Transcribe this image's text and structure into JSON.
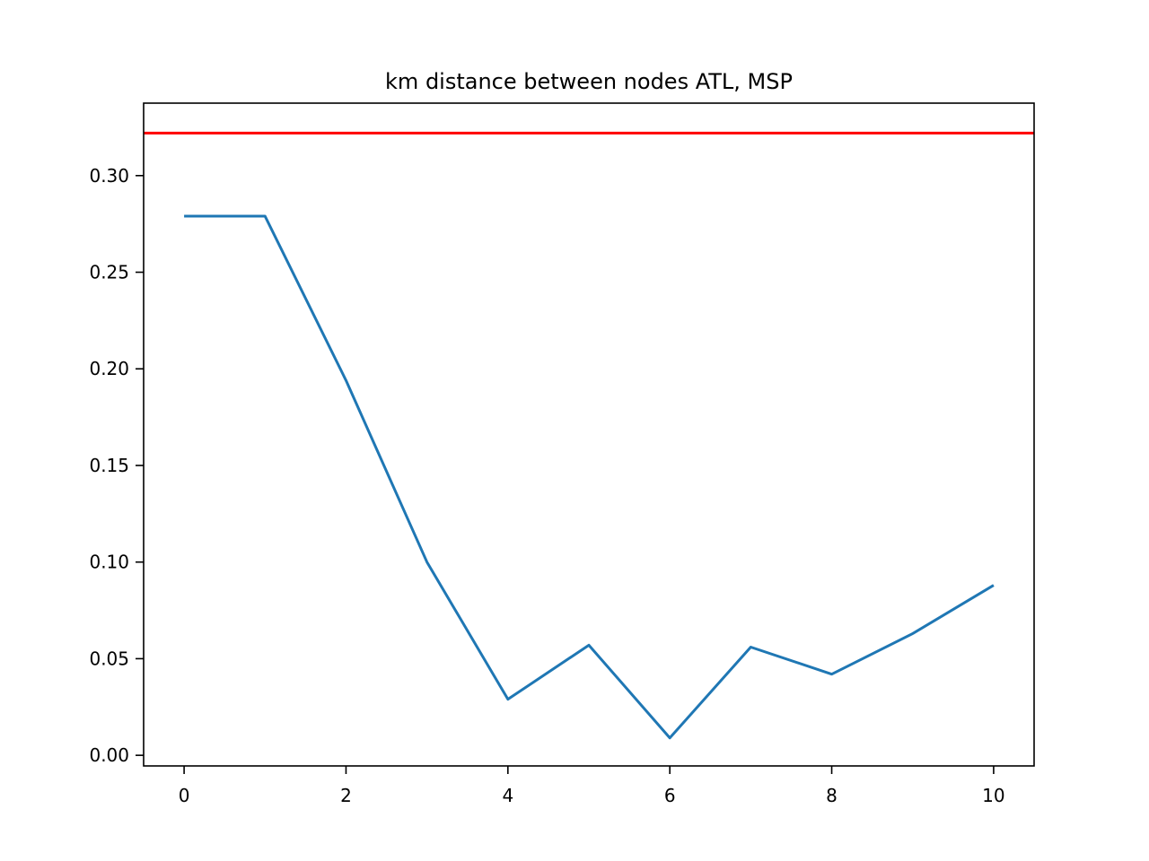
{
  "chart_data": {
    "type": "line",
    "title": "km distance between nodes ATL, MSP",
    "xlabel": "",
    "ylabel": "",
    "xlim": [
      -0.5,
      10.5
    ],
    "ylim": [
      -0.0055,
      0.3375
    ],
    "xticks": [
      0,
      2,
      4,
      6,
      8,
      10
    ],
    "xtick_labels": [
      "0",
      "2",
      "4",
      "6",
      "8",
      "10"
    ],
    "yticks": [
      0.0,
      0.05,
      0.1,
      0.15,
      0.2,
      0.25,
      0.3
    ],
    "ytick_labels": [
      "0.00",
      "0.05",
      "0.10",
      "0.15",
      "0.20",
      "0.25",
      "0.30"
    ],
    "grid": false,
    "legend": "none",
    "series": [
      {
        "color": "#1f77b4",
        "x": [
          0,
          1,
          2,
          3,
          4,
          5,
          6,
          7,
          8,
          9,
          10
        ],
        "y": [
          0.279,
          0.279,
          0.194,
          0.1,
          0.029,
          0.057,
          0.009,
          0.056,
          0.042,
          0.063,
          0.088
        ]
      }
    ],
    "reference_lines": [
      {
        "orientation": "horizontal",
        "y": 0.322,
        "color": "#ff0000"
      }
    ]
  }
}
